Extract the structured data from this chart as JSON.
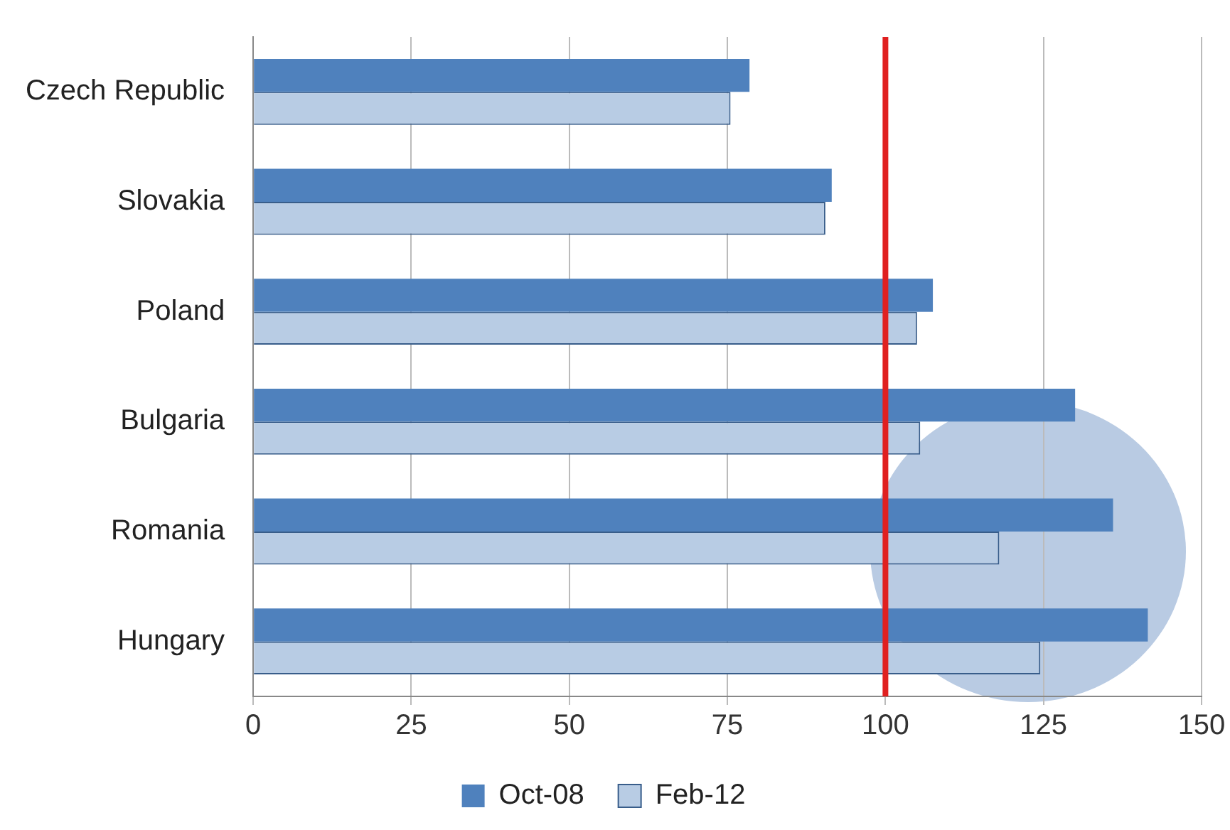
{
  "chart_data": {
    "type": "bar",
    "orientation": "horizontal",
    "categories": [
      "Czech Republic",
      "Slovakia",
      "Poland",
      "Bulgaria",
      "Romania",
      "Hungary"
    ],
    "series": [
      {
        "name": "Oct-08",
        "color": "#4f81bd",
        "values": [
          78.5,
          91.5,
          107.5,
          130,
          136,
          141.5
        ]
      },
      {
        "name": "Feb-12",
        "color": "#b8cce4",
        "values": [
          75.5,
          90.5,
          105,
          105.5,
          118,
          124.5
        ]
      }
    ],
    "xlim": [
      0,
      150
    ],
    "xticks": [
      0,
      25,
      50,
      75,
      100,
      125,
      150
    ],
    "grid": "x",
    "legend": "bottom",
    "ref_lines": [
      {
        "axis": "x",
        "value": 100,
        "color": "#e02020"
      }
    ]
  }
}
